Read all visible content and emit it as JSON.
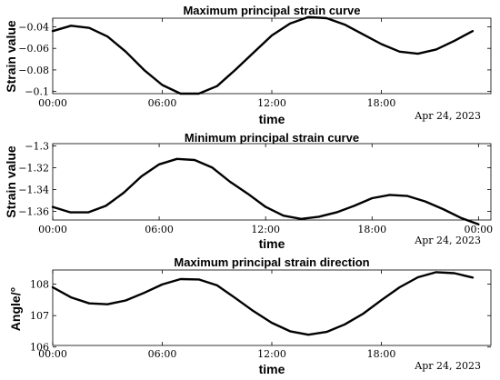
{
  "chart_data": [
    {
      "type": "line",
      "title": "Maximum principal strain curve",
      "xlabel": "time",
      "ylabel": "Strain value",
      "date_offset": "Apr 24, 2023",
      "xlim_hours": [
        0,
        24
      ],
      "x_ticks": [
        {
          "hour": 0,
          "label": "00:00"
        },
        {
          "hour": 6,
          "label": "06:00"
        },
        {
          "hour": 12,
          "label": "12:00"
        },
        {
          "hour": 18,
          "label": "18:00"
        }
      ],
      "ylim": [
        -0.102,
        -0.032
      ],
      "y_ticks": [
        {
          "value": -0.04,
          "label": "−0.04"
        },
        {
          "value": -0.06,
          "label": "−0.06"
        },
        {
          "value": -0.08,
          "label": "−0.08"
        },
        {
          "value": -0.1,
          "label": "−0.1"
        }
      ],
      "grid": false,
      "series": [
        {
          "x": [
            "00:00",
            "01:00",
            "02:00",
            "03:00",
            "04:00",
            "05:00",
            "06:00",
            "07:00",
            "08:00",
            "09:00",
            "10:00",
            "11:00",
            "12:00",
            "13:00",
            "14:00",
            "15:00",
            "16:00",
            "17:00",
            "18:00",
            "19:00",
            "20:00",
            "21:00",
            "22:00",
            "23:00"
          ],
          "values": [
            -0.044,
            -0.039,
            -0.041,
            -0.049,
            -0.063,
            -0.08,
            -0.094,
            -0.102,
            -0.102,
            -0.095,
            -0.08,
            -0.064,
            -0.048,
            -0.037,
            -0.031,
            -0.032,
            -0.038,
            -0.047,
            -0.056,
            -0.063,
            -0.065,
            -0.061,
            -0.053,
            -0.044
          ]
        }
      ]
    },
    {
      "type": "line",
      "title": "Minimum principal strain curve",
      "xlabel": "time",
      "ylabel": "Strain value",
      "date_offset": "Apr 24, 2023",
      "xlim_hours": [
        0,
        24.7
      ],
      "x_ticks": [
        {
          "hour": 0,
          "label": "00:00"
        },
        {
          "hour": 6,
          "label": "06:00"
        },
        {
          "hour": 12,
          "label": "12:00"
        },
        {
          "hour": 18,
          "label": "18:00"
        },
        {
          "hour": 24,
          "label": "00:00"
        }
      ],
      "ylim": [
        -1.368,
        -1.298
      ],
      "y_ticks": [
        {
          "value": -1.3,
          "label": "−1.3"
        },
        {
          "value": -1.32,
          "label": "−1.32"
        },
        {
          "value": -1.34,
          "label": "−1.34"
        },
        {
          "value": -1.36,
          "label": "−1.36"
        }
      ],
      "grid": false,
      "series": [
        {
          "x": [
            "00:00",
            "01:00",
            "02:00",
            "03:00",
            "04:00",
            "05:00",
            "06:00",
            "07:00",
            "08:00",
            "09:00",
            "10:00",
            "11:00",
            "12:00",
            "13:00",
            "14:00",
            "15:00",
            "16:00",
            "17:00",
            "18:00",
            "19:00",
            "20:00",
            "21:00",
            "22:00",
            "23:00",
            "24:00"
          ],
          "values": [
            -1.356,
            -1.361,
            -1.361,
            -1.355,
            -1.343,
            -1.328,
            -1.317,
            -1.312,
            -1.313,
            -1.32,
            -1.333,
            -1.344,
            -1.356,
            -1.364,
            -1.367,
            -1.365,
            -1.361,
            -1.355,
            -1.348,
            -1.345,
            -1.346,
            -1.351,
            -1.358,
            -1.366,
            -1.372
          ]
        }
      ]
    },
    {
      "type": "line",
      "title": "Maximum principal strain direction",
      "xlabel": "time",
      "ylabel": "Angle/°",
      "date_offset": "Apr 24, 2023",
      "xlim_hours": [
        0,
        24
      ],
      "x_ticks": [
        {
          "hour": 0,
          "label": "00:00"
        },
        {
          "hour": 6,
          "label": "06:00"
        },
        {
          "hour": 12,
          "label": "12:00"
        },
        {
          "hour": 18,
          "label": "18:00"
        }
      ],
      "ylim": [
        106.05,
        108.45
      ],
      "y_ticks": [
        {
          "value": 106,
          "label": "106"
        },
        {
          "value": 107,
          "label": "107"
        },
        {
          "value": 108,
          "label": "108"
        }
      ],
      "grid": false,
      "series": [
        {
          "x": [
            "00:00",
            "01:00",
            "02:00",
            "03:00",
            "04:00",
            "05:00",
            "06:00",
            "07:00",
            "08:00",
            "09:00",
            "10:00",
            "11:00",
            "12:00",
            "13:00",
            "14:00",
            "15:00",
            "16:00",
            "17:00",
            "18:00",
            "19:00",
            "20:00",
            "21:00",
            "22:00",
            "23:00"
          ],
          "values": [
            107.9,
            107.58,
            107.39,
            107.36,
            107.48,
            107.72,
            107.99,
            108.16,
            108.15,
            107.96,
            107.56,
            107.14,
            106.77,
            106.5,
            106.39,
            106.48,
            106.72,
            107.06,
            107.49,
            107.9,
            108.22,
            108.38,
            108.35,
            108.21
          ]
        }
      ]
    }
  ]
}
